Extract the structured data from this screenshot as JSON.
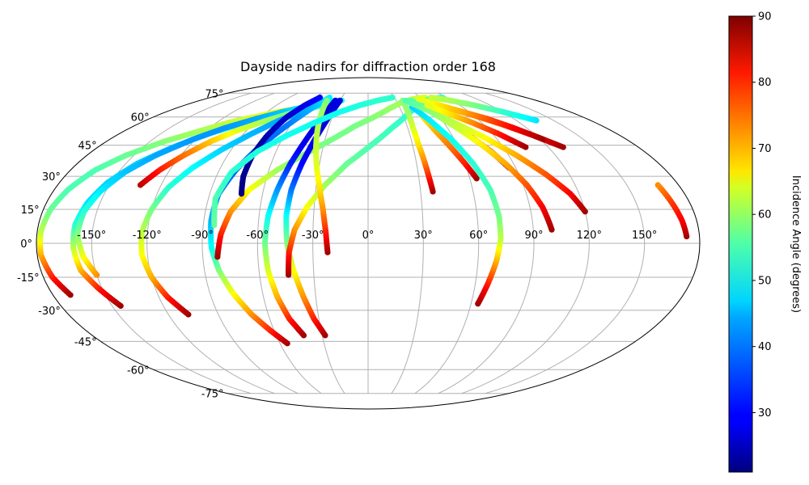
{
  "chart_data": {
    "type": "scatter",
    "projection": "mollweide",
    "title": "Dayside nadirs for diffraction order 168",
    "xlabel": "",
    "ylabel": "",
    "lon_ticks": [
      "-150°",
      "-120°",
      "-90°",
      "-60°",
      "-30°",
      "0°",
      "30°",
      "60°",
      "90°",
      "120°",
      "150°"
    ],
    "lat_ticks": [
      "75°",
      "60°",
      "45°",
      "30°",
      "15°",
      "0°",
      "-15°",
      "-30°",
      "-45°",
      "-60°",
      "-75°"
    ],
    "grid": true,
    "colorbar": {
      "label": "Incidence Angle (degrees)",
      "colormap": "jet",
      "range": [
        21,
        90
      ],
      "ticks": [
        "30",
        "40",
        "50",
        "60",
        "70",
        "80",
        "90"
      ]
    },
    "series": [
      {
        "points": [
          [
            -170,
            -23
          ],
          [
            -175,
            -15
          ],
          [
            -178,
            -5
          ],
          [
            -178,
            5
          ],
          [
            -176,
            15
          ],
          [
            -172,
            24
          ],
          [
            -165,
            33
          ],
          [
            -155,
            40
          ],
          [
            -140,
            47
          ],
          [
            -125,
            52
          ],
          [
            -110,
            57
          ],
          [
            -95,
            60
          ],
          [
            -80,
            63
          ],
          [
            -65,
            65
          ],
          [
            -50,
            67
          ]
        ],
        "incidence": [
          88,
          80,
          70,
          60,
          54,
          52,
          52,
          54,
          56,
          58,
          60,
          62,
          64,
          66,
          68
        ]
      },
      {
        "points": [
          [
            -145,
            -28
          ],
          [
            -152,
            -20
          ],
          [
            -158,
            -12
          ],
          [
            -160,
            -2
          ],
          [
            -160,
            8
          ],
          [
            -157,
            18
          ],
          [
            -152,
            27
          ],
          [
            -143,
            36
          ],
          [
            -130,
            44
          ],
          [
            -115,
            51
          ],
          [
            -100,
            56
          ],
          [
            -85,
            60
          ],
          [
            -70,
            63
          ],
          [
            -55,
            66
          ],
          [
            -40,
            68
          ]
        ],
        "incidence": [
          88,
          80,
          70,
          60,
          50,
          45,
          44,
          44,
          45,
          47,
          50,
          52,
          55,
          57,
          60
        ]
      },
      {
        "points": [
          [
            -150,
            -14
          ],
          [
            -155,
            -6
          ],
          [
            -158,
            4
          ],
          [
            -157,
            14
          ],
          [
            -153,
            23
          ],
          [
            -146,
            32
          ],
          [
            -136,
            40
          ],
          [
            -122,
            48
          ],
          [
            -108,
            54
          ],
          [
            -92,
            59
          ],
          [
            -76,
            63
          ],
          [
            -60,
            66
          ],
          [
            -45,
            68
          ],
          [
            -32,
            70
          ]
        ],
        "incidence": [
          72,
          64,
          56,
          50,
          46,
          43,
          41,
          40,
          40,
          41,
          43,
          46,
          50,
          52
        ]
      },
      {
        "points": [
          [
            -132,
            26
          ],
          [
            -126,
            33
          ],
          [
            -118,
            40
          ],
          [
            -108,
            47
          ],
          [
            -96,
            53
          ],
          [
            -82,
            58
          ],
          [
            -68,
            62
          ],
          [
            -54,
            65
          ],
          [
            -40,
            68
          ],
          [
            -28,
            70
          ]
        ],
        "incidence": [
          86,
          80,
          74,
          68,
          62,
          58,
          55,
          52,
          50,
          50
        ]
      },
      {
        "points": [
          [
            -108,
            -32
          ],
          [
            -115,
            -24
          ],
          [
            -120,
            -15
          ],
          [
            -123,
            -5
          ],
          [
            -123,
            5
          ],
          [
            -120,
            15
          ],
          [
            -115,
            25
          ],
          [
            -107,
            34
          ],
          [
            -96,
            43
          ],
          [
            -84,
            51
          ],
          [
            -72,
            58
          ],
          [
            -60,
            63
          ],
          [
            -50,
            67
          ],
          [
            -40,
            70
          ]
        ],
        "incidence": [
          88,
          80,
          70,
          64,
          60,
          55,
          50,
          47,
          44,
          42,
          41,
          42,
          44,
          46
        ]
      },
      {
        "points": [
          [
            -55,
            -46
          ],
          [
            -62,
            -40
          ],
          [
            -70,
            -32
          ],
          [
            -77,
            -22
          ],
          [
            -82,
            -12
          ],
          [
            -85,
            -2
          ],
          [
            -86,
            10
          ],
          [
            -85,
            22
          ],
          [
            -80,
            33
          ],
          [
            -72,
            45
          ],
          [
            -62,
            56
          ],
          [
            -52,
            66
          ],
          [
            -44,
            72
          ]
        ],
        "incidence": [
          88,
          80,
          72,
          64,
          56,
          48,
          42,
          38,
          36,
          36,
          38,
          42,
          46
        ]
      },
      {
        "points": [
          [
            -82,
            -6
          ],
          [
            -80,
            4
          ],
          [
            -76,
            14
          ],
          [
            -68,
            24
          ],
          [
            -55,
            33
          ],
          [
            -40,
            41
          ],
          [
            -25,
            48
          ],
          [
            -10,
            55
          ],
          [
            5,
            60
          ],
          [
            20,
            65
          ],
          [
            35,
            69
          ],
          [
            50,
            71
          ],
          [
            65,
            72
          ]
        ],
        "incidence": [
          88,
          80,
          72,
          64,
          58,
          56,
          55,
          55,
          56,
          57,
          58,
          60,
          62
        ]
      },
      {
        "points": [
          [
            -72,
            22
          ],
          [
            -74,
            30
          ],
          [
            -74,
            40
          ],
          [
            -72,
            50
          ],
          [
            -68,
            60
          ],
          [
            -62,
            67
          ],
          [
            -55,
            72
          ]
        ],
        "incidence": [
          21,
          22,
          23,
          24,
          26,
          28,
          30
        ]
      },
      {
        "points": [
          [
            -42,
            -42
          ],
          [
            -48,
            -34
          ],
          [
            -52,
            -24
          ],
          [
            -55,
            -12
          ],
          [
            -56,
            0
          ],
          [
            -55,
            12
          ],
          [
            -52,
            24
          ],
          [
            -48,
            36
          ],
          [
            -43,
            48
          ],
          [
            -38,
            60
          ],
          [
            -35,
            70
          ]
        ],
        "incidence": [
          88,
          80,
          70,
          62,
          55,
          48,
          40,
          32,
          28,
          26,
          27
        ]
      },
      {
        "points": [
          [
            -28,
            -42
          ],
          [
            -33,
            -34
          ],
          [
            -37,
            -24
          ],
          [
            -41,
            -12
          ],
          [
            -44,
            0
          ],
          [
            -45,
            12
          ],
          [
            -44,
            24
          ],
          [
            -41,
            36
          ],
          [
            -37,
            48
          ],
          [
            -33,
            60
          ],
          [
            -30,
            70
          ]
        ],
        "incidence": [
          88,
          80,
          72,
          64,
          56,
          48,
          38,
          30,
          28,
          27,
          28
        ]
      },
      {
        "points": [
          [
            -44,
            -14
          ],
          [
            -43,
            -4
          ],
          [
            -40,
            6
          ],
          [
            -34,
            16
          ],
          [
            -25,
            26
          ],
          [
            -13,
            36
          ],
          [
            2,
            45
          ],
          [
            18,
            54
          ],
          [
            35,
            62
          ],
          [
            52,
            68
          ],
          [
            68,
            71
          ],
          [
            85,
            72
          ]
        ],
        "incidence": [
          88,
          80,
          72,
          64,
          58,
          54,
          52,
          51,
          50,
          50,
          50,
          51
        ]
      },
      {
        "points": [
          [
            -22,
            -4
          ],
          [
            -23,
            5
          ],
          [
            -25,
            15
          ],
          [
            -28,
            25
          ],
          [
            -32,
            36
          ],
          [
            -36,
            48
          ],
          [
            -40,
            60
          ],
          [
            -44,
            70
          ]
        ],
        "incidence": [
          88,
          80,
          72,
          66,
          62,
          60,
          58,
          56
        ]
      },
      {
        "points": [
          [
            -84,
            8
          ],
          [
            -86,
            20
          ],
          [
            -82,
            32
          ],
          [
            -72,
            42
          ],
          [
            -58,
            50
          ],
          [
            -42,
            57
          ],
          [
            -25,
            63
          ],
          [
            -8,
            67
          ],
          [
            10,
            70
          ],
          [
            28,
            72
          ]
        ],
        "incidence": [
          54,
          52,
          50,
          49,
          48,
          48,
          48,
          49,
          50,
          50
        ]
      },
      {
        "points": [
          [
            37,
            23
          ],
          [
            36,
            30
          ],
          [
            35,
            38
          ],
          [
            34,
            46
          ],
          [
            34,
            54
          ],
          [
            35,
            62
          ],
          [
            37,
            70
          ]
        ],
        "incidence": [
          88,
          80,
          72,
          66,
          62,
          58,
          56
        ]
      },
      {
        "points": [
          [
            64,
            29
          ],
          [
            60,
            36
          ],
          [
            55,
            44
          ],
          [
            50,
            52
          ],
          [
            46,
            60
          ],
          [
            45,
            68
          ]
        ],
        "incidence": [
          88,
          80,
          74,
          70,
          66,
          64
        ]
      },
      {
        "points": [
          [
            64,
            -27
          ],
          [
            67,
            -18
          ],
          [
            70,
            -8
          ],
          [
            72,
            2
          ],
          [
            72,
            12
          ],
          [
            70,
            24
          ],
          [
            65,
            36
          ],
          [
            58,
            48
          ],
          [
            50,
            58
          ],
          [
            42,
            66
          ]
        ],
        "incidence": [
          88,
          80,
          70,
          60,
          55,
          52,
          50,
          48,
          46,
          44
        ]
      },
      {
        "points": [
          [
            86,
            34
          ],
          [
            80,
            42
          ],
          [
            72,
            50
          ],
          [
            64,
            58
          ],
          [
            56,
            65
          ]
        ],
        "incidence": [
          88,
          82,
          76,
          72,
          68
        ]
      },
      {
        "points": [
          [
            100,
            6
          ],
          [
            97,
            16
          ],
          [
            92,
            26
          ],
          [
            85,
            36
          ],
          [
            76,
            46
          ],
          [
            66,
            55
          ],
          [
            56,
            63
          ],
          [
            46,
            70
          ]
        ],
        "incidence": [
          88,
          82,
          76,
          70,
          65,
          60,
          56,
          52
        ]
      },
      {
        "points": [
          [
            120,
            14
          ],
          [
            115,
            22
          ],
          [
            106,
            31
          ],
          [
            95,
            40
          ],
          [
            82,
            49
          ],
          [
            68,
            57
          ],
          [
            54,
            64
          ],
          [
            40,
            70
          ]
        ],
        "incidence": [
          88,
          82,
          76,
          70,
          64,
          60,
          56,
          52
        ]
      },
      {
        "points": [
          [
            130,
            44
          ],
          [
            118,
            50
          ],
          [
            104,
            56
          ],
          [
            90,
            61
          ],
          [
            76,
            65
          ],
          [
            62,
            69
          ]
        ],
        "incidence": [
          88,
          82,
          76,
          72,
          68,
          64
        ]
      },
      {
        "points": [
          [
            122,
            48
          ],
          [
            110,
            54
          ],
          [
            98,
            59
          ],
          [
            84,
            63
          ],
          [
            70,
            67
          ],
          [
            56,
            71
          ]
        ],
        "incidence": [
          88,
          82,
          76,
          70,
          66,
          62
        ]
      },
      {
        "points": [
          [
            136,
            58
          ],
          [
            120,
            63
          ],
          [
            104,
            67
          ],
          [
            88,
            70
          ],
          [
            72,
            72
          ]
        ],
        "incidence": [
          45,
          50,
          55,
          58,
          60
        ]
      },
      {
        "points": [
          [
            173,
            3
          ],
          [
            172,
            10
          ],
          [
            170,
            18
          ],
          [
            168,
            26
          ]
        ],
        "incidence": [
          88,
          82,
          78,
          72
        ]
      },
      {
        "points": [
          [
            105,
            44
          ],
          [
            94,
            51
          ],
          [
            82,
            57
          ],
          [
            70,
            62
          ],
          [
            58,
            67
          ]
        ],
        "incidence": [
          88,
          80,
          72,
          66,
          62
        ]
      }
    ]
  }
}
